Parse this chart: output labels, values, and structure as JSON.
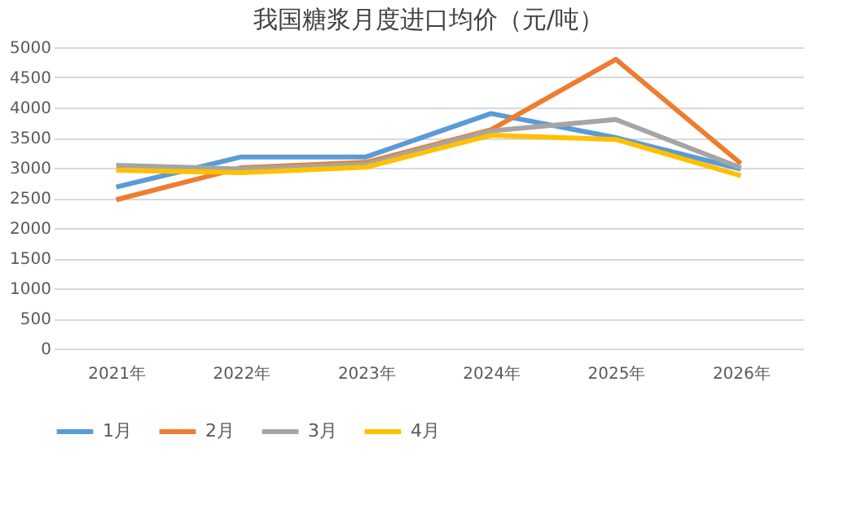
{
  "chart_data": {
    "type": "line",
    "title": "我国糖浆月度进口均价（元/吨）",
    "categories": [
      "2021年",
      "2022年",
      "2023年",
      "2024年",
      "2025年",
      "2026年"
    ],
    "series": [
      {
        "name": "1月",
        "color": "#5b9bd5",
        "values": [
          2680,
          3180,
          3180,
          3900,
          3500,
          2980
        ]
      },
      {
        "name": "2月",
        "color": "#ed7d31",
        "values": [
          2470,
          3000,
          3090,
          3630,
          4800,
          3070
        ]
      },
      {
        "name": "3月",
        "color": "#a5a5a5",
        "values": [
          3040,
          2980,
          3060,
          3610,
          3800,
          3000
        ]
      },
      {
        "name": "4月",
        "color": "#ffc000",
        "values": [
          2960,
          2920,
          3010,
          3540,
          3470,
          2870
        ]
      }
    ],
    "ylim": [
      0,
      5000
    ],
    "yticks": [
      0,
      500,
      1000,
      1500,
      2000,
      2500,
      3000,
      3500,
      4000,
      4500,
      5000
    ],
    "grid": "y",
    "legend": "bottom",
    "marker": "none",
    "line_style": "solid"
  }
}
